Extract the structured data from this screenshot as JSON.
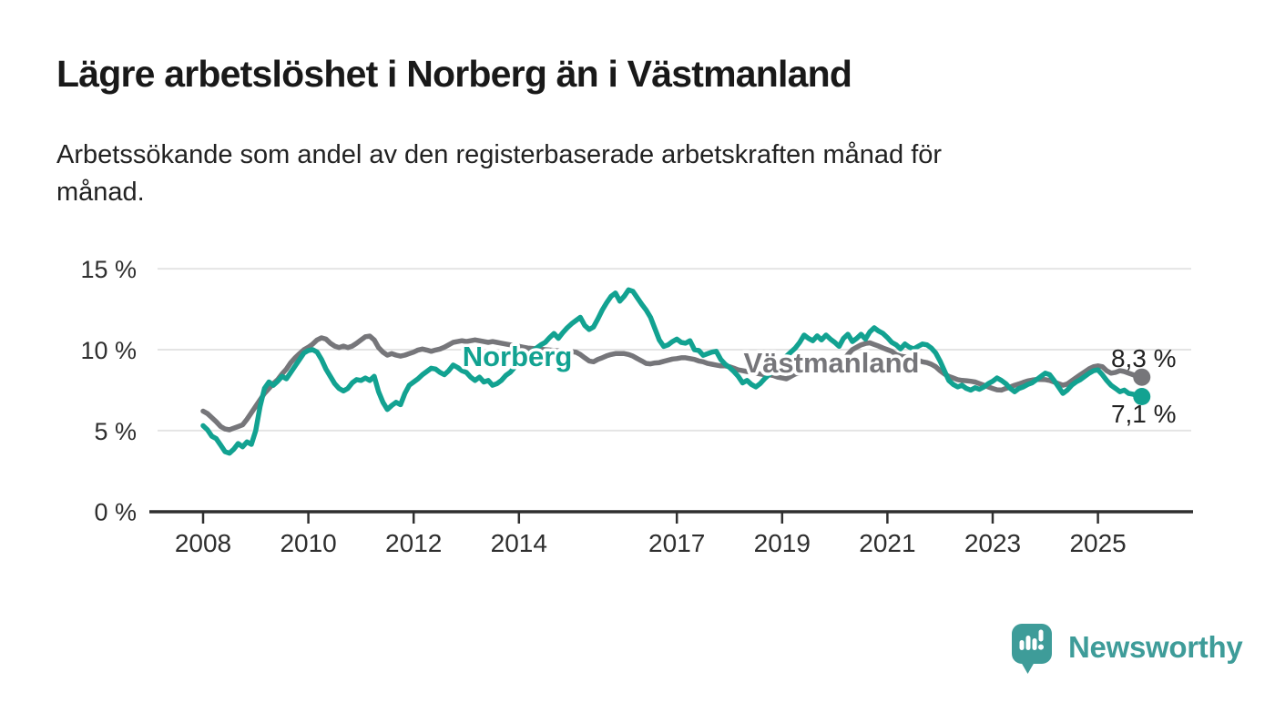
{
  "header": {
    "title": "Lägre arbetslöshet i Norberg än i Västmanland",
    "subtitle": "Arbetssökande som andel av den registerbaserade arbetskraften månad för\nmånad."
  },
  "chart_data": {
    "type": "line",
    "title": "Lägre arbetslöshet i Norberg än i Västmanland",
    "xlabel": "",
    "ylabel": "",
    "x_start": 2008.0,
    "x_step_months": 1,
    "x_end": 2025.83,
    "xlim": [
      2007.0,
      2026.4
    ],
    "ylim": [
      0,
      15.5
    ],
    "grid": "horizontal",
    "legend": "inline-labels",
    "x_ticks": [
      "2008",
      "2010",
      "2012",
      "2014",
      "2017",
      "2019",
      "2021",
      "2023",
      "2025"
    ],
    "x_tick_years": [
      2008,
      2010,
      2012,
      2014,
      2017,
      2019,
      2021,
      2023,
      2025
    ],
    "y_ticks": [
      {
        "value": 0,
        "label": "0 %"
      },
      {
        "value": 5,
        "label": "5 %"
      },
      {
        "value": 10,
        "label": "10 %"
      },
      {
        "value": 15,
        "label": "15 %"
      }
    ],
    "series": [
      {
        "name": "Norberg",
        "color": "#12A291",
        "end_label": "7,1 %",
        "last_value": 7.1,
        "values": [
          5.3,
          5.05,
          4.65,
          4.5,
          4.1,
          3.7,
          3.6,
          3.85,
          4.2,
          4.0,
          4.3,
          4.15,
          5.0,
          6.5,
          7.6,
          8.0,
          7.8,
          8.05,
          8.35,
          8.2,
          8.6,
          9.0,
          9.4,
          9.8,
          9.95,
          10.0,
          9.85,
          9.4,
          8.8,
          8.35,
          7.9,
          7.6,
          7.45,
          7.6,
          7.95,
          8.15,
          8.1,
          8.25,
          8.1,
          8.35,
          7.4,
          6.75,
          6.3,
          6.55,
          6.75,
          6.6,
          7.3,
          7.8,
          8.0,
          8.2,
          8.45,
          8.65,
          8.85,
          8.8,
          8.6,
          8.45,
          8.7,
          9.05,
          8.9,
          8.7,
          8.6,
          8.3,
          8.1,
          8.3,
          8.0,
          8.1,
          7.8,
          7.9,
          8.1,
          8.4,
          8.6,
          8.9,
          9.2,
          9.5,
          9.7,
          9.9,
          10.1,
          10.3,
          10.45,
          10.75,
          11.0,
          10.7,
          11.05,
          11.35,
          11.6,
          11.8,
          12.0,
          11.5,
          11.25,
          11.4,
          11.9,
          12.45,
          12.9,
          13.3,
          13.5,
          13.0,
          13.3,
          13.7,
          13.6,
          13.2,
          12.8,
          12.45,
          12.0,
          11.3,
          10.6,
          10.2,
          10.3,
          10.5,
          10.65,
          10.45,
          10.4,
          10.55,
          10.0,
          9.95,
          9.65,
          9.75,
          9.85,
          9.9,
          9.4,
          9.1,
          8.9,
          8.65,
          8.35,
          7.95,
          8.1,
          7.85,
          7.7,
          7.9,
          8.2,
          8.45,
          8.75,
          9.1,
          9.35,
          9.6,
          9.85,
          10.1,
          10.45,
          10.9,
          10.7,
          10.55,
          10.85,
          10.6,
          10.9,
          10.65,
          10.45,
          10.2,
          10.7,
          10.95,
          10.5,
          10.7,
          10.95,
          10.65,
          11.1,
          11.35,
          11.15,
          11.0,
          10.75,
          10.45,
          10.3,
          10.05,
          10.35,
          10.15,
          10.05,
          10.2,
          10.35,
          10.3,
          10.1,
          9.8,
          9.3,
          8.7,
          8.1,
          7.85,
          7.7,
          7.8,
          7.6,
          7.5,
          7.65,
          7.55,
          7.7,
          7.9,
          8.05,
          8.25,
          8.1,
          7.9,
          7.6,
          7.4,
          7.6,
          7.7,
          7.85,
          7.95,
          8.15,
          8.35,
          8.55,
          8.45,
          8.1,
          7.7,
          7.3,
          7.5,
          7.8,
          8.0,
          8.15,
          8.35,
          8.55,
          8.7,
          8.75,
          8.45,
          8.1,
          7.8,
          7.6,
          7.4,
          7.5,
          7.3,
          7.25,
          7.15,
          7.1
        ]
      },
      {
        "name": "Västmanland",
        "color": "#76767A",
        "end_label": "8,3 %",
        "last_value": 8.3,
        "values": [
          6.2,
          6.05,
          5.8,
          5.55,
          5.25,
          5.1,
          5.05,
          5.15,
          5.25,
          5.35,
          5.7,
          6.1,
          6.5,
          6.9,
          7.3,
          7.6,
          7.9,
          8.15,
          8.5,
          8.8,
          9.2,
          9.5,
          9.76,
          10.0,
          10.15,
          10.35,
          10.6,
          10.73,
          10.65,
          10.4,
          10.22,
          10.13,
          10.22,
          10.13,
          10.22,
          10.4,
          10.6,
          10.8,
          10.84,
          10.6,
          10.13,
          9.85,
          9.66,
          9.76,
          9.66,
          9.6,
          9.66,
          9.76,
          9.85,
          9.98,
          10.04,
          9.98,
          9.9,
          9.98,
          10.04,
          10.15,
          10.3,
          10.45,
          10.5,
          10.55,
          10.5,
          10.55,
          10.6,
          10.55,
          10.5,
          10.45,
          10.5,
          10.45,
          10.4,
          10.35,
          10.3,
          10.25,
          10.2,
          10.15,
          10.1,
          10.08,
          10.05,
          10.02,
          10.0,
          9.98,
          9.95,
          9.93,
          9.9,
          9.88,
          9.87,
          9.85,
          9.7,
          9.5,
          9.3,
          9.25,
          9.4,
          9.5,
          9.62,
          9.7,
          9.76,
          9.76,
          9.76,
          9.7,
          9.6,
          9.45,
          9.3,
          9.15,
          9.12,
          9.18,
          9.2,
          9.28,
          9.35,
          9.42,
          9.45,
          9.5,
          9.5,
          9.45,
          9.4,
          9.3,
          9.25,
          9.15,
          9.1,
          9.05,
          9.0,
          9.0,
          8.95,
          8.85,
          8.75,
          8.7,
          8.65,
          8.6,
          8.55,
          8.5,
          8.45,
          8.45,
          8.4,
          8.3,
          8.25,
          8.2,
          8.35,
          8.5,
          8.55,
          8.6,
          8.65,
          8.7,
          8.75,
          8.8,
          8.85,
          8.9,
          8.95,
          9.0,
          9.3,
          9.7,
          10.0,
          10.15,
          10.3,
          10.38,
          10.42,
          10.32,
          10.22,
          10.1,
          10.0,
          9.9,
          9.7,
          9.6,
          9.55,
          9.5,
          9.45,
          9.35,
          9.25,
          9.2,
          9.1,
          8.95,
          8.7,
          8.5,
          8.35,
          8.25,
          8.15,
          8.1,
          8.08,
          8.05,
          8.0,
          7.9,
          7.8,
          7.7,
          7.6,
          7.52,
          7.5,
          7.6,
          7.7,
          7.8,
          7.88,
          7.98,
          8.07,
          8.12,
          8.16,
          8.16,
          8.15,
          8.1,
          8.0,
          7.9,
          7.8,
          7.88,
          8.07,
          8.26,
          8.45,
          8.63,
          8.82,
          8.95,
          9.0,
          8.95,
          8.7,
          8.55,
          8.6,
          8.7,
          8.65,
          8.55,
          8.45,
          8.35,
          8.3
        ]
      }
    ]
  },
  "footer": {
    "brand": "Newsworthy",
    "brand_color": "#3E9C99"
  }
}
